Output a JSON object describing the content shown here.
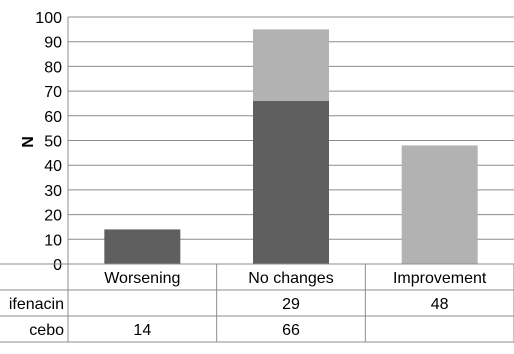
{
  "chart_data": {
    "type": "bar",
    "stacked": true,
    "title": "",
    "xlabel": "",
    "ylabel": "N",
    "ylim": [
      0,
      100
    ],
    "yticks": [
      0,
      10,
      20,
      30,
      40,
      50,
      60,
      70,
      80,
      90,
      100
    ],
    "grid": true,
    "legend": "data table rows under the x axis",
    "categories": [
      "Worsening",
      "No changes",
      "Improvement"
    ],
    "series": [
      {
        "name": "cebo",
        "color": "#5f5f5f",
        "values": [
          14,
          66,
          null
        ],
        "labels": [
          "14",
          "66",
          ""
        ]
      },
      {
        "name": "ifenacin",
        "color": "#b2b2b2",
        "values": [
          null,
          29,
          48
        ],
        "labels": [
          "",
          "29",
          "48"
        ]
      }
    ]
  }
}
